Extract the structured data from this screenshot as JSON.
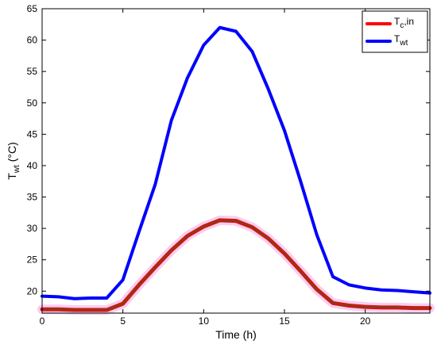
{
  "chart_data": {
    "type": "line",
    "title": "",
    "xlabel": "Time (h)",
    "ylabel": {
      "base": "T",
      "sub": "wt",
      "rest": " (°C)"
    },
    "xlim": [
      0,
      24
    ],
    "ylim": [
      16.5,
      65
    ],
    "xticks": [
      0,
      5,
      10,
      15,
      20
    ],
    "yticks": [
      20,
      25,
      30,
      35,
      40,
      45,
      50,
      55,
      60,
      65
    ],
    "grid": false,
    "legend": {
      "placement": "top-right"
    },
    "series": [
      {
        "name": "Tc,in",
        "label": {
          "base": "T",
          "sub": "c",
          "rest": ",in"
        },
        "color": "#ff0000",
        "overlay_color": "#8b3a1e",
        "halo_color": "#f7c6ee",
        "x": [
          0,
          1,
          2,
          3,
          4,
          5,
          6,
          7,
          8,
          9,
          10,
          11,
          12,
          13,
          14,
          15,
          16,
          17,
          18,
          19,
          20,
          21,
          22,
          23,
          24
        ],
        "y": [
          17.1,
          17.1,
          17.0,
          17.0,
          17.0,
          18.0,
          21.0,
          23.8,
          26.5,
          28.8,
          30.3,
          31.3,
          31.2,
          30.2,
          28.4,
          26.0,
          23.2,
          20.3,
          18.1,
          17.7,
          17.5,
          17.4,
          17.4,
          17.3,
          17.3
        ]
      },
      {
        "name": "Twt",
        "label": {
          "base": "T",
          "sub": "wt",
          "rest": ""
        },
        "color": "#0000ff",
        "x": [
          0,
          1,
          2,
          3,
          4,
          5,
          6,
          7,
          8,
          9,
          10,
          11,
          12,
          13,
          14,
          15,
          16,
          17,
          18,
          19,
          20,
          21,
          22,
          23,
          24
        ],
        "y": [
          19.2,
          19.1,
          18.8,
          18.9,
          18.9,
          21.8,
          29.5,
          37.0,
          47.2,
          54.0,
          59.2,
          62.0,
          61.4,
          58.2,
          52.2,
          45.6,
          37.5,
          29.0,
          22.3,
          21.0,
          20.5,
          20.2,
          20.1,
          19.9,
          19.7
        ]
      }
    ]
  }
}
